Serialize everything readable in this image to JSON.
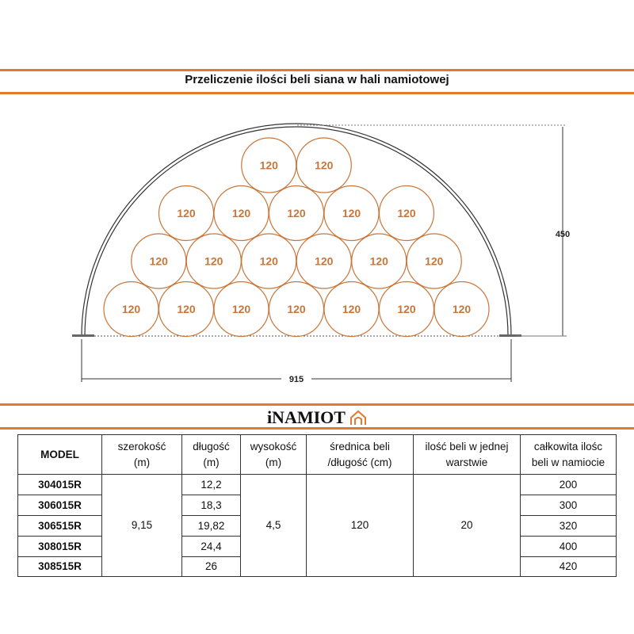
{
  "title": "Przeliczenie ilości beli siana w hali namiotowej",
  "diagram": {
    "bale_label": "120",
    "rows": [
      2,
      5,
      6,
      7
    ],
    "height_label": "450",
    "width_label": "915",
    "bale_color": "#c8763a",
    "accent": "#e07a2e"
  },
  "logo": "iNAMIOT",
  "table": {
    "headers": [
      [
        "MODEL"
      ],
      [
        "szerokość",
        "(m)"
      ],
      [
        "długość",
        "(m)"
      ],
      [
        "wysokość",
        "(m)"
      ],
      [
        "średnica beli",
        "/długość (cm)"
      ],
      [
        "ilość beli w jednej",
        "warstwie"
      ],
      [
        "całkowita ilośc",
        "beli w namiocie"
      ]
    ],
    "models": [
      "304015R",
      "306015R",
      "306515R",
      "308015R",
      "308515R"
    ],
    "szerokosc": "9,15",
    "dlugosc": [
      "12,2",
      "18,3",
      "19,82",
      "24,4",
      "26"
    ],
    "wysokosc": "4,5",
    "srednica": "120",
    "warstwa": "20",
    "calkowita": [
      "200",
      "300",
      "320",
      "400",
      "420"
    ]
  }
}
